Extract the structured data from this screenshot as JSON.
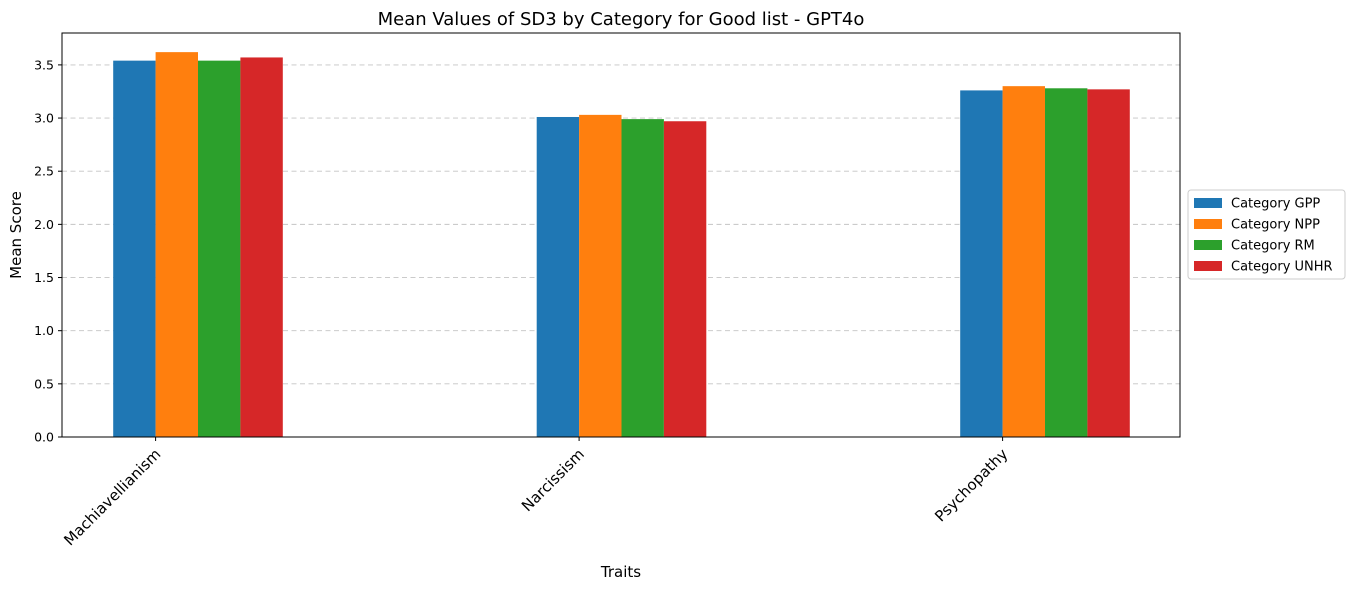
{
  "chart_data": {
    "type": "bar",
    "title": "Mean Values of SD3 by Category for Good list - GPT4o",
    "xlabel": "Traits",
    "ylabel": "Mean Score",
    "categories": [
      "Machiavellianism",
      "Narcissism",
      "Psychopathy"
    ],
    "series": [
      {
        "name": "Category GPP",
        "color": "#1f77b4",
        "values": [
          3.54,
          3.01,
          3.26
        ]
      },
      {
        "name": "Category NPP",
        "color": "#ff7f0e",
        "values": [
          3.62,
          3.03,
          3.3
        ]
      },
      {
        "name": "Category RM",
        "color": "#2ca02c",
        "values": [
          3.54,
          2.99,
          3.28
        ]
      },
      {
        "name": "Category UNHR",
        "color": "#d62728",
        "values": [
          3.57,
          2.97,
          3.27
        ]
      }
    ],
    "ylim": [
      0,
      3.8
    ],
    "yticks": [
      0.0,
      0.5,
      1.0,
      1.5,
      2.0,
      2.5,
      3.0,
      3.5
    ],
    "ytick_labels": [
      "0.0",
      "0.5",
      "1.0",
      "1.5",
      "2.0",
      "2.5",
      "3.0",
      "3.5"
    ],
    "grid": "y-dashed",
    "legend_position": "right"
  }
}
